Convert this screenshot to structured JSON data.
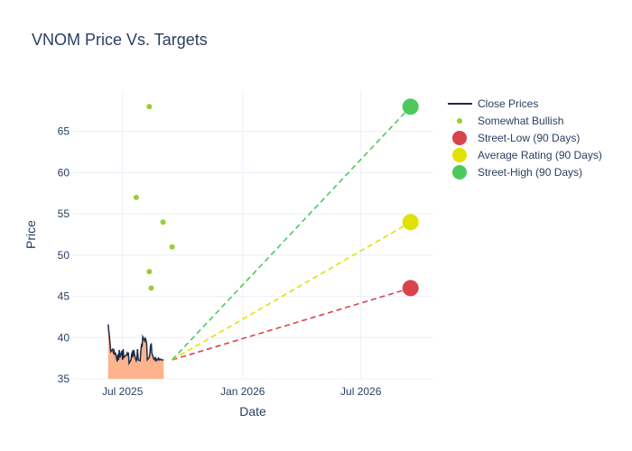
{
  "chart_data": {
    "type": "line",
    "title": "VNOM Price Vs. Targets",
    "xlabel": "Date",
    "ylabel": "Price",
    "x_range": [
      "2025-04-15",
      "2026-10-20"
    ],
    "ylim": [
      35,
      70
    ],
    "y_ticks": [
      35,
      40,
      45,
      50,
      55,
      60,
      65
    ],
    "x_ticks": [
      {
        "date": "2025-07-01",
        "label": "Jul 2025"
      },
      {
        "date": "2026-01-01",
        "label": "Jan 2026"
      },
      {
        "date": "2026-07-01",
        "label": "Jul 2026"
      }
    ],
    "grid": true,
    "legend_position": "top-right",
    "close_prices": {
      "name": "Close Prices",
      "color": "#1f2a44",
      "fill_color": "#fdb48c",
      "x": [
        "2025-06-09",
        "2025-06-10",
        "2025-06-11",
        "2025-06-12",
        "2025-06-13",
        "2025-06-16",
        "2025-06-17",
        "2025-06-18",
        "2025-06-19",
        "2025-06-20",
        "2025-06-23",
        "2025-06-24",
        "2025-06-25",
        "2025-06-26",
        "2025-06-27",
        "2025-06-30",
        "2025-07-01",
        "2025-07-02",
        "2025-07-03",
        "2025-07-07",
        "2025-07-08",
        "2025-07-09",
        "2025-07-10",
        "2025-07-11",
        "2025-07-14",
        "2025-07-15",
        "2025-07-16",
        "2025-07-17",
        "2025-07-18",
        "2025-07-21",
        "2025-07-22",
        "2025-07-23",
        "2025-07-24",
        "2025-07-25",
        "2025-07-28",
        "2025-07-29",
        "2025-07-30",
        "2025-07-31",
        "2025-08-01",
        "2025-08-04",
        "2025-08-05",
        "2025-08-06",
        "2025-08-07",
        "2025-08-08",
        "2025-08-11",
        "2025-08-12",
        "2025-08-13",
        "2025-08-14",
        "2025-08-15",
        "2025-08-18",
        "2025-08-19",
        "2025-08-20",
        "2025-08-21",
        "2025-08-22",
        "2025-08-25",
        "2025-08-26",
        "2025-08-27",
        "2025-08-28",
        "2025-08-29",
        "2025-09-02"
      ],
      "y": [
        41.6,
        40.8,
        40.1,
        39.2,
        38.3,
        38.6,
        38.2,
        38.4,
        37.9,
        38.2,
        37.1,
        38.0,
        37.3,
        38.5,
        37.6,
        38.4,
        37.3,
        38.6,
        37.6,
        37.9,
        38.1,
        37.8,
        38.2,
        36.9,
        37.3,
        38.0,
        38.2,
        37.6,
        38.5,
        37.4,
        37.2,
        37.5,
        38.6,
        37.3,
        37.2,
        38.4,
        39.1,
        39.0,
        40.1,
        39.6,
        39.9,
        39.7,
        39.2,
        37.3,
        37.6,
        38.1,
        39.1,
        39.2,
        38.1,
        37.4,
        37.5,
        37.3,
        37.5,
        37.2,
        37.5,
        37.3,
        37.4,
        37.4,
        37.3,
        37.3
      ]
    },
    "somewhat_bullish": {
      "name": "Somewhat Bullish",
      "color": "#9acd32",
      "points": [
        {
          "x": "2025-07-22",
          "y": 57
        },
        {
          "x": "2025-08-11",
          "y": 68
        },
        {
          "x": "2025-08-11",
          "y": 48
        },
        {
          "x": "2025-08-14",
          "y": 46
        },
        {
          "x": "2025-09-01",
          "y": 54
        },
        {
          "x": "2025-09-15",
          "y": 51
        }
      ]
    },
    "targets": {
      "start": {
        "x": "2025-09-15",
        "y": 37.3
      },
      "end_date": "2026-09-15",
      "series": [
        {
          "name": "Street-Low (90 Days)",
          "value": 46,
          "color": "#d9434b"
        },
        {
          "name": "Average Rating (90 Days)",
          "value": 54,
          "color": "#e2e200"
        },
        {
          "name": "Street-High (90 Days)",
          "value": 68,
          "color": "#4cc95c"
        }
      ]
    }
  }
}
